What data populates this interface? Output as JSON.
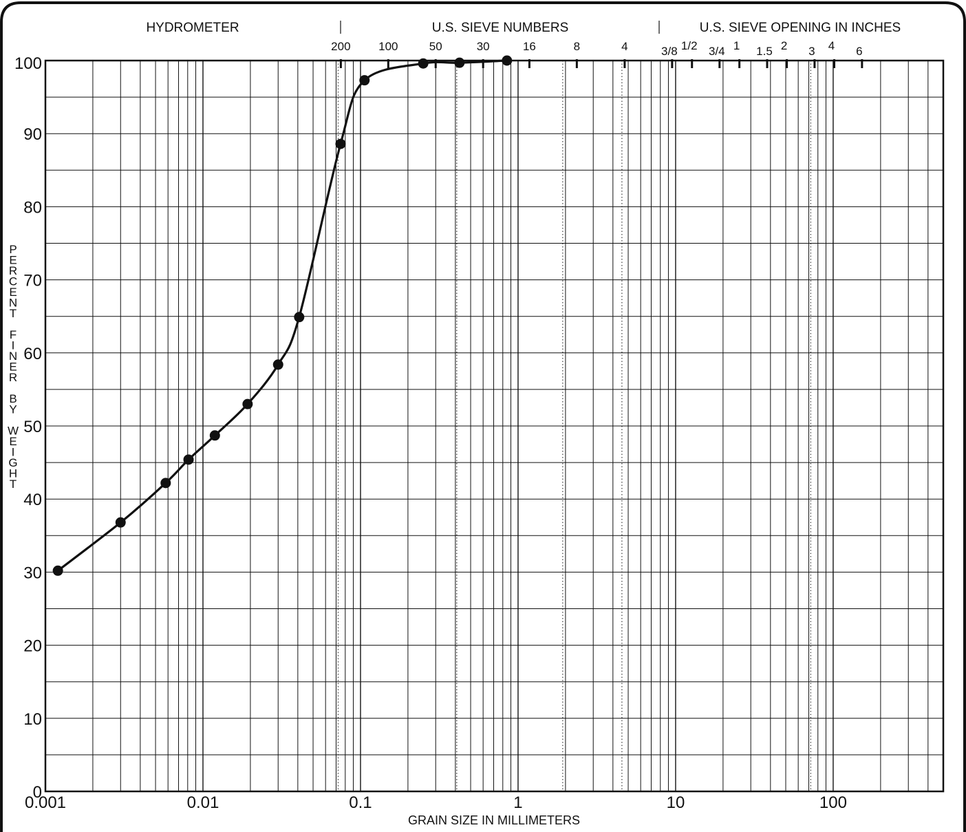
{
  "chart_data": {
    "type": "line",
    "title": "",
    "xlabel": "GRAIN SIZE IN MILLIMETERS",
    "ylabel": "PERCENT FINER BY WEIGHT",
    "x_scale": "log",
    "xlim": [
      0.001,
      500
    ],
    "ylim": [
      0,
      100
    ],
    "x_ticks": [
      {
        "value": 0.001,
        "label": "0.001"
      },
      {
        "value": 0.01,
        "label": "0.01"
      },
      {
        "value": 0.1,
        "label": "0.1"
      },
      {
        "value": 1,
        "label": "1"
      },
      {
        "value": 10,
        "label": "10"
      },
      {
        "value": 100,
        "label": "100"
      }
    ],
    "y_ticks": [
      0,
      10,
      20,
      30,
      40,
      50,
      60,
      70,
      80,
      90,
      100
    ],
    "grid": true,
    "top_headers": [
      {
        "label": "HYDROMETER"
      },
      {
        "label": "U.S. SIEVE NUMBERS"
      },
      {
        "label": "U.S. SIEVE OPENING IN INCHES"
      }
    ],
    "sieve_numbers": [
      {
        "label": "200",
        "mm": 0.075
      },
      {
        "label": "100",
        "mm": 0.15
      },
      {
        "label": "50",
        "mm": 0.3
      },
      {
        "label": "30",
        "mm": 0.6
      },
      {
        "label": "16",
        "mm": 1.18
      },
      {
        "label": "8",
        "mm": 2.36
      },
      {
        "label": "4",
        "mm": 4.75
      }
    ],
    "sieve_openings": [
      {
        "label": "3/8",
        "mm": 9.5
      },
      {
        "label": "1/2",
        "mm": 12.7
      },
      {
        "label": "3/4",
        "mm": 19
      },
      {
        "label": "1",
        "mm": 25.4
      },
      {
        "label": "1.5",
        "mm": 38.1
      },
      {
        "label": "2",
        "mm": 50.8
      },
      {
        "label": "3",
        "mm": 76.2
      },
      {
        "label": "4",
        "mm": 101.6
      },
      {
        "label": "6",
        "mm": 152.4
      }
    ],
    "dotted_lines_mm": [
      0.075,
      0.425,
      2.0,
      4.75,
      75
    ],
    "series": [
      {
        "points": [
          {
            "x": 0.0012,
            "y": 30.2
          },
          {
            "x": 0.003,
            "y": 36.8
          },
          {
            "x": 0.0058,
            "y": 42.2
          },
          {
            "x": 0.0081,
            "y": 45.4
          },
          {
            "x": 0.0119,
            "y": 48.7
          },
          {
            "x": 0.0192,
            "y": 53.0
          },
          {
            "x": 0.03,
            "y": 58.4
          },
          {
            "x": 0.0408,
            "y": 64.9
          },
          {
            "x": 0.0747,
            "y": 88.6
          },
          {
            "x": 0.106,
            "y": 97.3
          },
          {
            "x": 0.25,
            "y": 99.6
          },
          {
            "x": 0.425,
            "y": 99.7
          },
          {
            "x": 0.85,
            "y": 100.0
          }
        ]
      }
    ]
  }
}
